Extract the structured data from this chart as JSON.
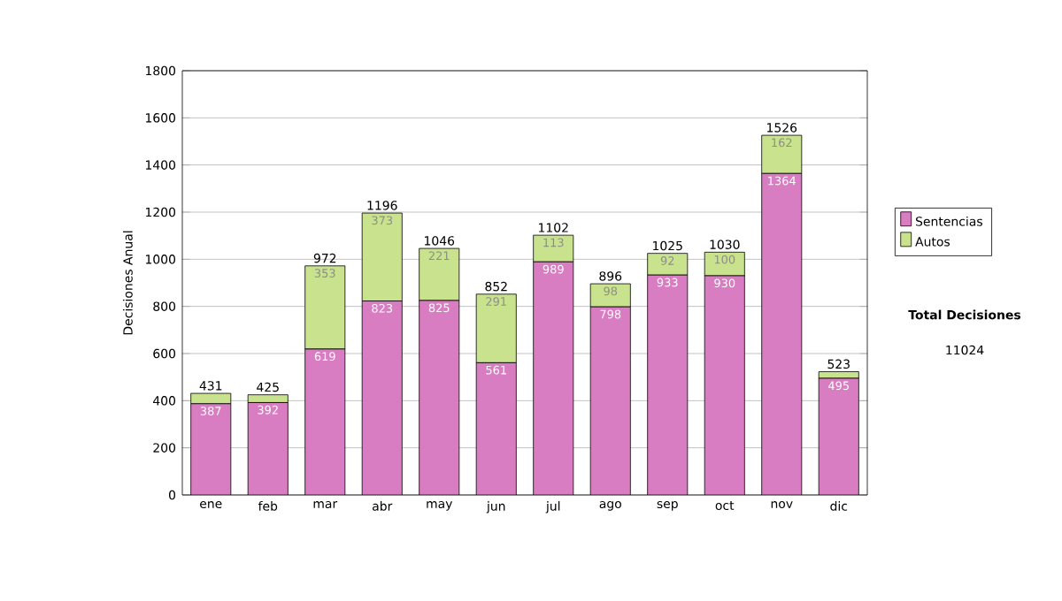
{
  "chart_data": {
    "type": "bar",
    "stacked": true,
    "ylabel": "Decisiones Anual",
    "categories": [
      "ene",
      "feb",
      "mar",
      "abr",
      "may",
      "jun",
      "jul",
      "ago",
      "sep",
      "oct",
      "nov",
      "dic"
    ],
    "series": [
      {
        "name": "Sentencias",
        "color": "#d97dc3",
        "values": [
          387,
          392,
          619,
          823,
          825,
          561,
          989,
          798,
          933,
          930,
          1364,
          495
        ],
        "value_labels": [
          "387",
          "392",
          "619",
          "823",
          "825",
          "561",
          "989",
          "798",
          "933",
          "930",
          "1364",
          "495"
        ]
      },
      {
        "name": "Autos",
        "color": "#c9e28e",
        "values": [
          44,
          33,
          353,
          373,
          221,
          291,
          113,
          98,
          92,
          100,
          162,
          28
        ],
        "value_labels": [
          null,
          null,
          "353",
          "373",
          "221",
          "291",
          "113",
          "98",
          "92",
          "100",
          "162",
          null
        ]
      }
    ],
    "totals": [
      "431",
      "425",
      "972",
      "1196",
      "1046",
      "852",
      "1102",
      "896",
      "1025",
      "1030",
      "1526",
      "523"
    ],
    "ylim": [
      0,
      1800
    ],
    "yticks": [
      0,
      200,
      400,
      600,
      800,
      1000,
      1200,
      1400,
      1600,
      1800
    ],
    "grid": "y",
    "legend": "right",
    "annotations": [
      "Total Decisiones",
      "11024"
    ]
  }
}
